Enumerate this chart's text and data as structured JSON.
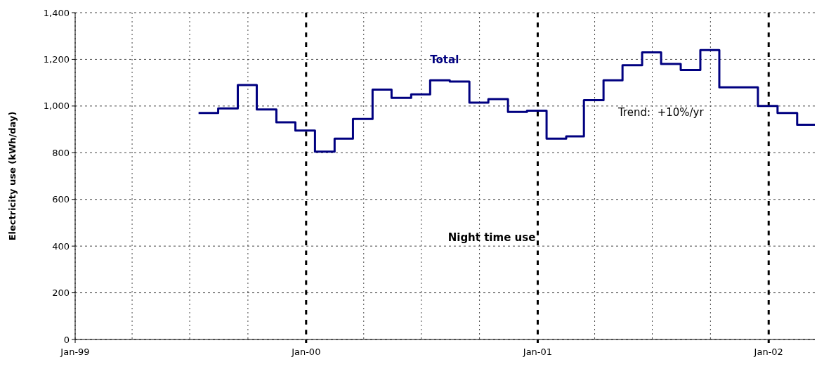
{
  "chart_data": {
    "type": "step",
    "ylabel": "Electricity use (kWh/day)",
    "x": [
      "1999-07-15",
      "1999-08-15",
      "1999-09-15",
      "1999-10-15",
      "1999-11-15",
      "1999-12-15",
      "2000-01-15",
      "2000-02-15",
      "2000-03-15",
      "2000-04-15",
      "2000-05-15",
      "2000-06-15",
      "2000-07-15",
      "2000-08-15",
      "2000-09-15",
      "2000-10-15",
      "2000-11-15",
      "2000-12-15",
      "2001-01-15",
      "2001-02-15",
      "2001-03-15",
      "2001-04-15",
      "2001-05-15",
      "2001-06-15",
      "2001-07-15",
      "2001-08-15",
      "2001-09-15",
      "2001-10-15",
      "2001-11-15",
      "2001-12-15",
      "2002-01-15",
      "2002-02-15",
      "2002-03-15"
    ],
    "series": [
      {
        "name": "Total",
        "color": "#000080",
        "values": [
          970,
          990,
          1090,
          985,
          930,
          895,
          805,
          860,
          945,
          1070,
          1035,
          1050,
          1110,
          1105,
          1015,
          1030,
          975,
          980,
          860,
          870,
          1025,
          1110,
          1175,
          1230,
          1180,
          1155,
          1240,
          1080,
          1080,
          1000,
          970,
          920,
          920
        ]
      }
    ],
    "xlim": [
      "1999-01-01",
      "2002-03-15"
    ],
    "xticks": [
      {
        "value": "1999-01-01",
        "label": "Jan-99"
      },
      {
        "value": "1999-04-01",
        "label": null
      },
      {
        "value": "1999-07-01",
        "label": null
      },
      {
        "value": "1999-10-01",
        "label": null
      },
      {
        "value": "2000-01-01",
        "label": "Jan-00"
      },
      {
        "value": "2000-04-01",
        "label": null
      },
      {
        "value": "2000-07-01",
        "label": null
      },
      {
        "value": "2000-10-01",
        "label": null
      },
      {
        "value": "2001-01-01",
        "label": "Jan-01"
      },
      {
        "value": "2001-04-01",
        "label": null
      },
      {
        "value": "2001-07-01",
        "label": null
      },
      {
        "value": "2001-10-01",
        "label": null
      },
      {
        "value": "2002-01-01",
        "label": "Jan-02"
      }
    ],
    "ylim": [
      0,
      1400
    ],
    "yticks": [
      0,
      200,
      400,
      600,
      800,
      {
        "value": 1000,
        "label": "1,000"
      },
      {
        "value": 1200,
        "label": "1,200"
      },
      {
        "value": 1400,
        "label": "1,400"
      }
    ],
    "grid": true,
    "line_style": "solid",
    "marker": "none",
    "annotations": [
      "Trend:  +10%/yr",
      "Night time use"
    ]
  }
}
